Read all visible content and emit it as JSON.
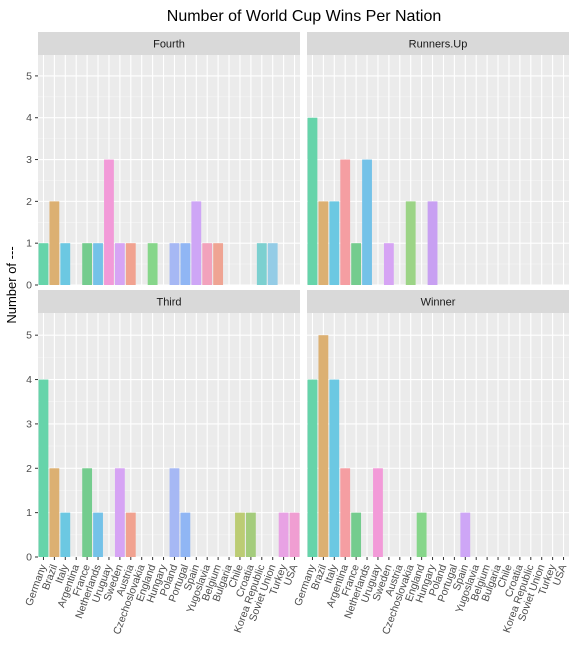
{
  "chart_data": {
    "type": "bar",
    "title": "Number of World Cup Wins Per Nation",
    "xlabel": "",
    "ylabel": "Number of ---",
    "ylim": [
      0,
      5.5
    ],
    "yticks": [
      0,
      1,
      2,
      3,
      4,
      5
    ],
    "grid": true,
    "legend": "none",
    "categories": [
      "Germany",
      "Brazil",
      "Italy",
      "Argentina",
      "France",
      "Netherlands",
      "Uruguay",
      "Sweden",
      "Austria",
      "Czechoslovakia",
      "England",
      "Hungary",
      "Poland",
      "Portugal",
      "Spain",
      "Yugoslavia",
      "Belgium",
      "Bulgaria",
      "Chile",
      "Croatia",
      "Korea Republic",
      "Soviet Union",
      "Turkey",
      "USA"
    ],
    "colors": [
      "#66d4aa",
      "#dcb072",
      "#6cc8e2",
      "#f59ea2",
      "#74cc8e",
      "#74c2e8",
      "#f29ad8",
      "#d6a4f4",
      "#f1a290",
      "#9cd486",
      "#86d68a",
      "#c8a0f2",
      "#a6b8f4",
      "#90b6f4",
      "#cea6f6",
      "#f2a2bc",
      "#efa493",
      "#c9c474",
      "#bccc74",
      "#a4cc7c",
      "#7cd0d0",
      "#94cce6",
      "#e8a2e4",
      "#f09ed2"
    ],
    "panels": [
      {
        "strip": "Fourth",
        "values": [
          1,
          2,
          1,
          0,
          1,
          1,
          3,
          1,
          1,
          0,
          1,
          0,
          1,
          1,
          2,
          1,
          1,
          0,
          0,
          0,
          1,
          1,
          0,
          0
        ]
      },
      {
        "strip": "Runners.Up",
        "values": [
          4,
          2,
          2,
          3,
          1,
          3,
          0,
          1,
          0,
          2,
          0,
          2,
          0,
          0,
          0,
          0,
          0,
          0,
          0,
          0,
          0,
          0,
          0,
          0
        ]
      },
      {
        "strip": "Third",
        "values": [
          4,
          2,
          1,
          0,
          2,
          1,
          0,
          2,
          1,
          0,
          0,
          0,
          2,
          1,
          0,
          0,
          0,
          0,
          1,
          1,
          0,
          0,
          1,
          1
        ]
      },
      {
        "strip": "Winner",
        "values": [
          4,
          5,
          4,
          2,
          1,
          0,
          2,
          0,
          0,
          0,
          1,
          0,
          0,
          0,
          1,
          0,
          0,
          0,
          0,
          0,
          0,
          0,
          0,
          0
        ]
      }
    ]
  }
}
